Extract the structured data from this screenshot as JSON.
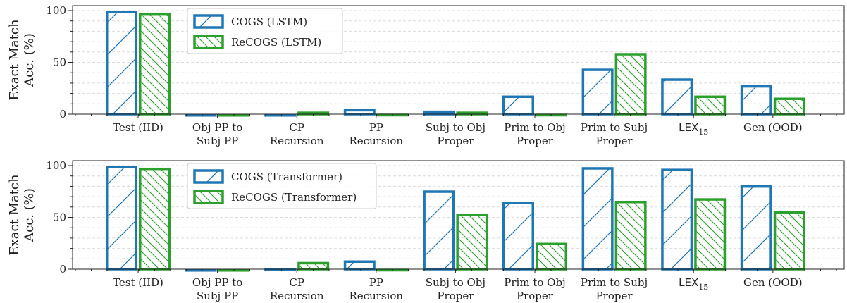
{
  "chart_data": [
    {
      "type": "bar",
      "categories": [
        [
          "Test (IID)"
        ],
        [
          "Obj PP to",
          "Subj PP"
        ],
        [
          "CP",
          "Recursion"
        ],
        [
          "PP",
          "Recursion"
        ],
        [
          "Subj to Obj",
          "Proper"
        ],
        [
          "Prim to Obj",
          "Proper"
        ],
        [
          "Prim to Subj",
          "Proper"
        ],
        [
          "LEX",
          "15"
        ],
        [
          "Gen (OOD)"
        ]
      ],
      "series": [
        {
          "name": "COGS (LSTM)",
          "color": "#1f77b4",
          "hatch": "forward",
          "values": [
            100,
            0.3,
            0.3,
            5,
            3.5,
            18,
            44,
            34.5,
            28
          ]
        },
        {
          "name": "ReCOGS (LSTM)",
          "color": "#2ca02c",
          "hatch": "back",
          "values": [
            98,
            0.3,
            2.5,
            0.5,
            2.5,
            0.5,
            59,
            18,
            16
          ]
        }
      ],
      "ylabel": [
        "Exact Match",
        "Acc. (%)"
      ],
      "ylim": [
        0,
        100
      ],
      "yticks": [
        0,
        50,
        100
      ],
      "grid": "y-dashed",
      "legend": "top-left"
    },
    {
      "type": "bar",
      "categories": [
        [
          "Test (IID)"
        ],
        [
          "Obj PP to",
          "Subj PP"
        ],
        [
          "CP",
          "Recursion"
        ],
        [
          "PP",
          "Recursion"
        ],
        [
          "Subj to Obj",
          "Proper"
        ],
        [
          "Prim to Obj",
          "Proper"
        ],
        [
          "Prim to Subj",
          "Proper"
        ],
        [
          "LEX",
          "15"
        ],
        [
          "Gen (OOD)"
        ]
      ],
      "series": [
        {
          "name": "COGS (Transformer)",
          "color": "#1f77b4",
          "hatch": "forward",
          "values": [
            100,
            0.3,
            0.8,
            8.5,
            76,
            65,
            98.5,
            97,
            81
          ]
        },
        {
          "name": "ReCOGS (Transformer)",
          "color": "#2ca02c",
          "hatch": "back",
          "values": [
            98,
            0.3,
            7,
            0.5,
            53.5,
            25.5,
            66,
            68.5,
            56
          ]
        }
      ],
      "ylabel": [
        "Exact Match",
        "Acc. (%)"
      ],
      "ylim": [
        0,
        100
      ],
      "yticks": [
        0,
        50,
        100
      ],
      "grid": "y-dashed",
      "legend": "top-left"
    }
  ]
}
